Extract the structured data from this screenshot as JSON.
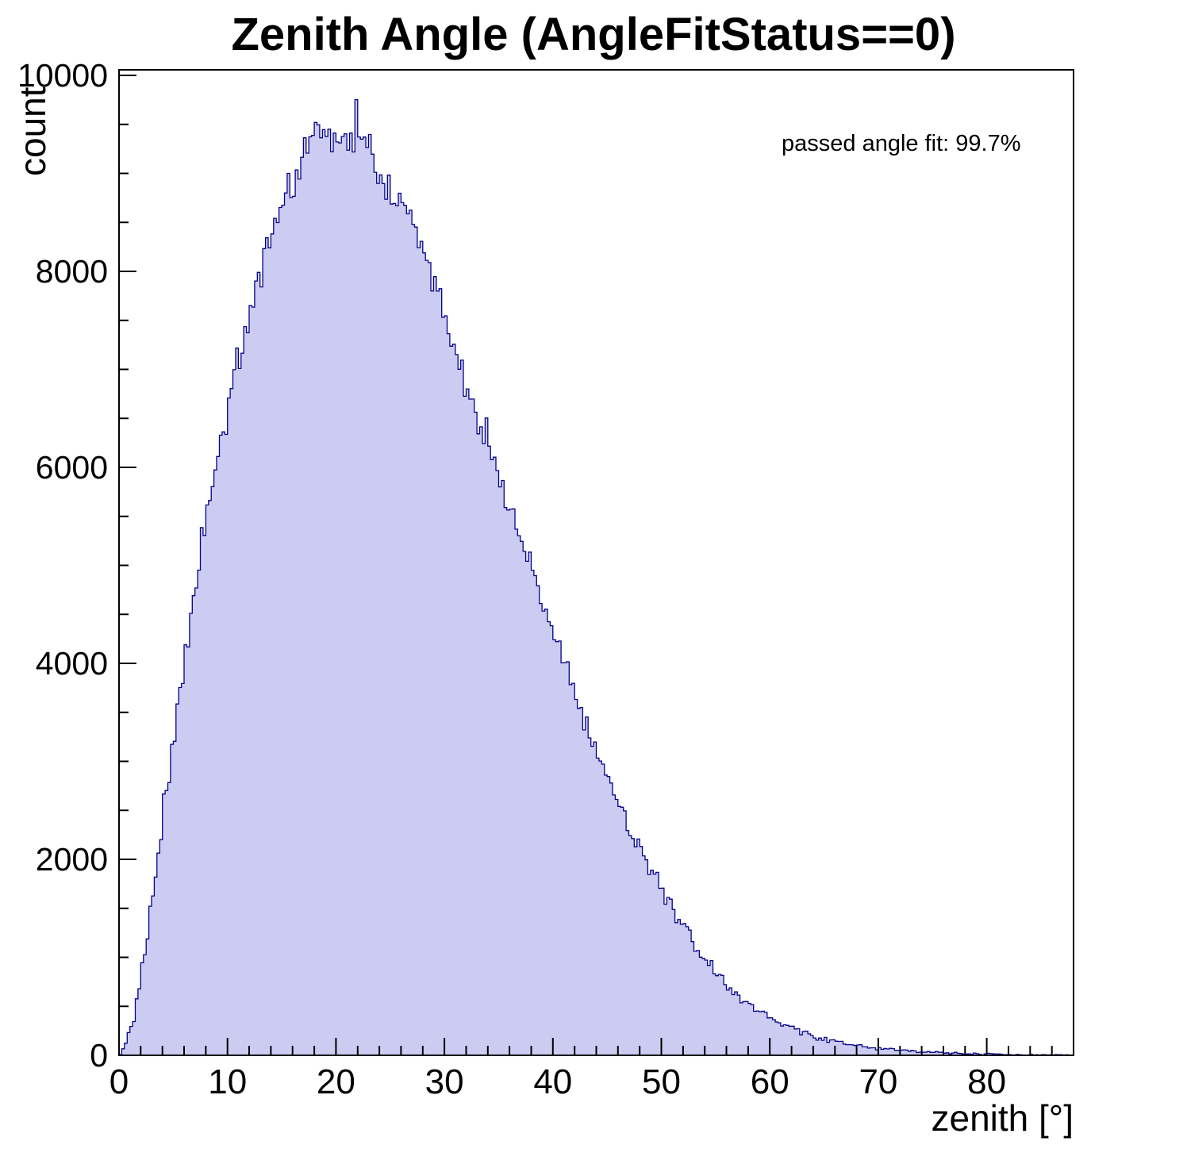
{
  "title": "Zenith Angle (AngleFitStatus==0)",
  "annotation": "passed angle fit: 99.7%",
  "chart_data": {
    "type": "bar",
    "style": "histogram",
    "title": "Zenith Angle (AngleFitStatus==0)",
    "xlabel": "zenith [°]",
    "ylabel": "count",
    "annotation": "passed angle fit: 99.7%",
    "xlim": [
      0,
      88
    ],
    "ylim": [
      0,
      10000
    ],
    "x_major_ticks": [
      0,
      10,
      20,
      30,
      40,
      50,
      60,
      70,
      80
    ],
    "x_minor_step": 2,
    "y_major_ticks": [
      0,
      2000,
      4000,
      6000,
      8000,
      10000
    ],
    "y_minor_step": 500,
    "grid": false,
    "legend_position": "none",
    "fill_color": "#ccccf2",
    "line_color": "#00008b",
    "frame_color": "#000000",
    "bin_start": 0,
    "bin_width": 1,
    "counts": [
      80,
      450,
      1150,
      1950,
      2800,
      3620,
      4380,
      5120,
      5760,
      6280,
      6850,
      7280,
      7750,
      8150,
      8520,
      8850,
      9080,
      9280,
      9480,
      9420,
      9380,
      9320,
      9450,
      9150,
      8880,
      8780,
      8580,
      8320,
      8060,
      7760,
      7380,
      7020,
      6720,
      6420,
      6060,
      5720,
      5420,
      5120,
      4820,
      4520,
      4180,
      3860,
      3560,
      3260,
      2980,
      2720,
      2460,
      2220,
      2010,
      1810,
      1620,
      1420,
      1230,
      1060,
      910,
      780,
      665,
      565,
      480,
      410,
      350,
      298,
      252,
      214,
      180,
      152,
      128,
      108,
      92,
      78,
      66,
      56,
      47,
      40,
      34,
      28,
      24,
      20,
      17,
      14,
      12,
      10,
      8,
      7,
      6,
      5,
      4,
      3
    ]
  }
}
